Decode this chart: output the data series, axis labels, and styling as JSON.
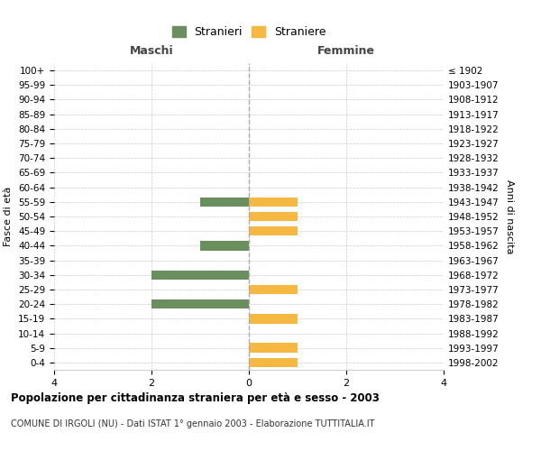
{
  "age_groups": [
    "100+",
    "95-99",
    "90-94",
    "85-89",
    "80-84",
    "75-79",
    "70-74",
    "65-69",
    "60-64",
    "55-59",
    "50-54",
    "45-49",
    "40-44",
    "35-39",
    "30-34",
    "25-29",
    "20-24",
    "15-19",
    "10-14",
    "5-9",
    "0-4"
  ],
  "birth_years": [
    "≤ 1902",
    "1903-1907",
    "1908-1912",
    "1913-1917",
    "1918-1922",
    "1923-1927",
    "1928-1932",
    "1933-1937",
    "1938-1942",
    "1943-1947",
    "1948-1952",
    "1953-1957",
    "1958-1962",
    "1963-1967",
    "1968-1972",
    "1973-1977",
    "1978-1982",
    "1983-1987",
    "1988-1992",
    "1993-1997",
    "1998-2002"
  ],
  "maschi": [
    0,
    0,
    0,
    0,
    0,
    0,
    0,
    0,
    0,
    1,
    0,
    0,
    1,
    0,
    2,
    0,
    2,
    0,
    0,
    0,
    0
  ],
  "femmine": [
    0,
    0,
    0,
    0,
    0,
    0,
    0,
    0,
    0,
    1,
    1,
    1,
    0,
    0,
    0,
    1,
    0,
    1,
    0,
    1,
    1
  ],
  "color_maschi": "#6b8e5e",
  "color_femmine": "#f5b942",
  "xlim": 4,
  "title": "Popolazione per cittadinanza straniera per età e sesso - 2003",
  "subtitle": "COMUNE DI IRGOLI (NU) - Dati ISTAT 1° gennaio 2003 - Elaborazione TUTTITALIA.IT",
  "ylabel_left": "Fasce di età",
  "ylabel_right": "Anni di nascita",
  "label_maschi": "Stranieri",
  "label_femmine": "Straniere",
  "header_left": "Maschi",
  "header_right": "Femmine",
  "bg_color": "#ffffff",
  "grid_color": "#cccccc",
  "bar_height": 0.65
}
